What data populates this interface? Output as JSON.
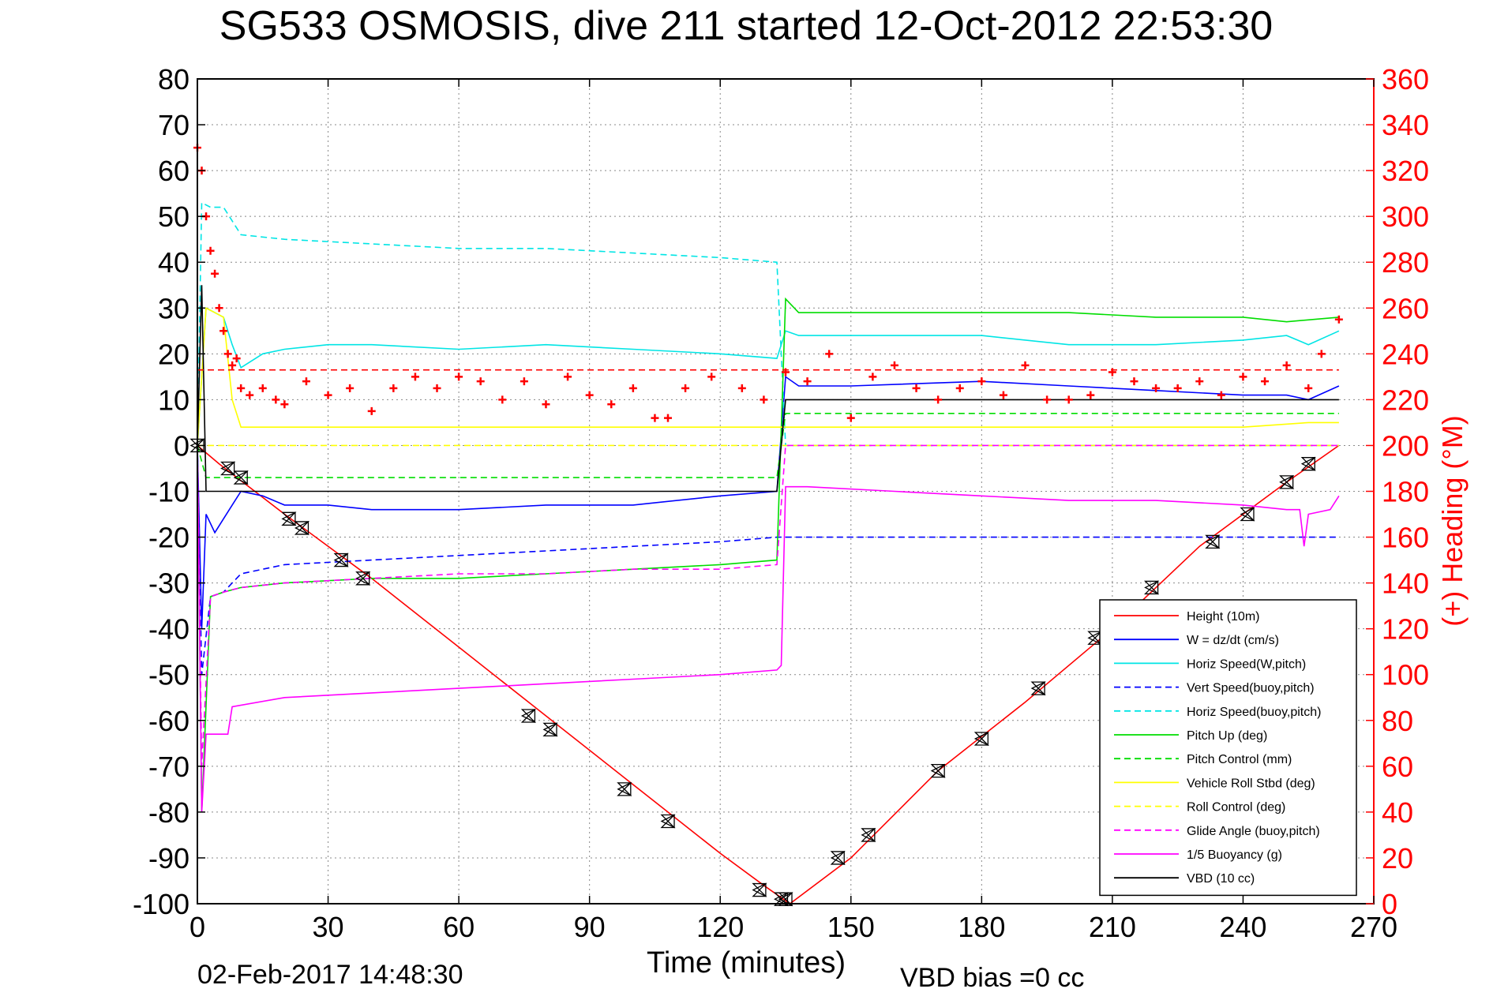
{
  "chart_data": {
    "type": "line",
    "title": "SG533 OSMOSIS, dive 211 started 12-Oct-2012 22:53:30",
    "xlabel": "Time (minutes)",
    "ylabel": "",
    "y2label": "(+) Heading (°M)",
    "footer_left": "02-Feb-2017 14:48:30",
    "footer_right": "VBD bias =0 cc",
    "xlim": [
      0,
      270
    ],
    "ylim": [
      -100,
      80
    ],
    "y2lim": [
      0,
      360
    ],
    "xticks": [
      0,
      30,
      60,
      90,
      120,
      150,
      180,
      210,
      240,
      270
    ],
    "yticks": [
      -100,
      -90,
      -80,
      -70,
      -60,
      -50,
      -40,
      -30,
      -20,
      -10,
      0,
      10,
      20,
      30,
      40,
      50,
      60,
      70,
      80
    ],
    "y2ticks": [
      0,
      20,
      40,
      60,
      80,
      100,
      120,
      140,
      160,
      180,
      200,
      220,
      240,
      260,
      280,
      300,
      320,
      340,
      360
    ],
    "grid": true,
    "legend_position": "bottom-right",
    "colors": {
      "title": "#000000",
      "right_axis": "#ff0000",
      "grid": "#888888"
    },
    "series": [
      {
        "name": "Height (10m)",
        "color": "#ff0000",
        "style": "solid",
        "x": [
          0,
          5,
          20,
          40,
          60,
          80,
          100,
          120,
          130,
          136,
          150,
          170,
          190,
          210,
          230,
          250,
          262
        ],
        "y": [
          0,
          -4,
          -15,
          -29,
          -44,
          -59,
          -74,
          -89,
          -96,
          -100,
          -90,
          -71,
          -56,
          -40,
          -22,
          -8,
          0
        ]
      },
      {
        "name": "W = dz/dt (cm/s)",
        "color": "#0000ff",
        "style": "solid",
        "x": [
          0,
          1,
          2,
          4,
          6,
          8,
          10,
          15,
          20,
          30,
          40,
          60,
          80,
          100,
          120,
          133,
          135,
          138,
          150,
          180,
          200,
          220,
          240,
          250,
          255,
          262
        ],
        "y": [
          0,
          -40,
          -15,
          -19,
          -16,
          -13,
          -10,
          -11,
          -13,
          -13,
          -14,
          -14,
          -13,
          -13,
          -11,
          -10,
          15,
          13,
          13,
          14,
          13,
          12,
          11,
          11,
          10,
          13
        ]
      },
      {
        "name": "Horiz Speed(W,pitch)",
        "color": "#00e5e5",
        "style": "solid",
        "x": [
          0,
          2,
          4,
          6,
          8,
          10,
          15,
          20,
          30,
          40,
          60,
          80,
          100,
          120,
          133,
          135,
          138,
          150,
          180,
          200,
          220,
          240,
          250,
          255,
          262
        ],
        "y": [
          0,
          30,
          29,
          28,
          22,
          17,
          20,
          21,
          22,
          22,
          21,
          22,
          21,
          20,
          19,
          25,
          24,
          24,
          24,
          22,
          22,
          23,
          24,
          22,
          25
        ]
      },
      {
        "name": "Vert Speed(buoy,pitch)",
        "color": "#0000ff",
        "style": "dashed",
        "x": [
          0,
          1,
          3,
          6,
          10,
          20,
          40,
          60,
          80,
          100,
          120,
          133,
          135,
          262
        ],
        "y": [
          0,
          -50,
          -33,
          -32,
          -28,
          -26,
          -25,
          -24,
          -23,
          -22,
          -21,
          -20,
          -20,
          -20
        ]
      },
      {
        "name": "Horiz Speed(buoy,pitch)",
        "color": "#00e5e5",
        "style": "dashed",
        "x": [
          0,
          1,
          3,
          6,
          10,
          20,
          40,
          60,
          80,
          100,
          120,
          133,
          135,
          262
        ],
        "y": [
          0,
          53,
          52,
          52,
          46,
          45,
          44,
          43,
          43,
          42,
          41,
          40,
          0,
          0
        ]
      },
      {
        "name": "Pitch Up (deg)",
        "color": "#00dd00",
        "style": "solid",
        "x": [
          0,
          1,
          3,
          6,
          10,
          20,
          40,
          60,
          80,
          100,
          120,
          133,
          135,
          138,
          150,
          180,
          200,
          220,
          240,
          250,
          262
        ],
        "y": [
          0,
          -80,
          -33,
          -32,
          -31,
          -30,
          -29,
          -29,
          -28,
          -27,
          -26,
          -25,
          32,
          29,
          29,
          29,
          29,
          28,
          28,
          27,
          28
        ]
      },
      {
        "name": "Pitch Control (mm)",
        "color": "#00dd00",
        "style": "dashed",
        "x": [
          0,
          2,
          133,
          135,
          262
        ],
        "y": [
          0,
          -7,
          -7,
          7,
          7
        ]
      },
      {
        "name": "Vehicle Roll Stbd (deg)",
        "color": "#ffff00",
        "style": "solid",
        "x": [
          0,
          2,
          4,
          6,
          8,
          10,
          20,
          40,
          60,
          80,
          100,
          120,
          133,
          135,
          138,
          150,
          180,
          200,
          220,
          240,
          255,
          262
        ],
        "y": [
          0,
          30,
          29,
          28,
          10,
          4,
          4,
          4,
          4,
          4,
          4,
          4,
          4,
          4,
          4,
          4,
          4,
          4,
          4,
          4,
          5,
          5
        ]
      },
      {
        "name": "Roll Control (deg)",
        "color": "#ffff00",
        "style": "dashed",
        "x": [
          0,
          262
        ],
        "y": [
          0,
          0
        ]
      },
      {
        "name": "Glide Angle (buoy,pitch)",
        "color": "#ff00ff",
        "style": "dashed",
        "x": [
          0,
          1,
          3,
          6,
          10,
          20,
          40,
          60,
          80,
          100,
          120,
          133,
          135,
          262
        ],
        "y": [
          0,
          -70,
          -33,
          -32,
          -31,
          -30,
          -29,
          -28,
          -28,
          -27,
          -27,
          -26,
          0,
          0
        ]
      },
      {
        "name": "1/5 Buoyancy (g)",
        "color": "#ff00ff",
        "style": "solid",
        "x": [
          0,
          1,
          2,
          7,
          8,
          20,
          40,
          60,
          80,
          100,
          120,
          133,
          134,
          135,
          140,
          160,
          180,
          200,
          220,
          240,
          250,
          253,
          254,
          255,
          260,
          262
        ],
        "y": [
          0,
          -80,
          -63,
          -63,
          -57,
          -55,
          -54,
          -53,
          -52,
          -51,
          -50,
          -49,
          -48,
          -9,
          -9,
          -10,
          -11,
          -12,
          -12,
          -13,
          -14,
          -14,
          -22,
          -15,
          -14,
          -11
        ]
      },
      {
        "name": "VBD (10 cc)",
        "color": "#000000",
        "style": "solid",
        "x": [
          0,
          1,
          2,
          133,
          135,
          136,
          140,
          262
        ],
        "y": [
          0,
          35,
          -10,
          -10,
          10,
          10,
          10,
          10
        ]
      },
      {
        "name": "(+) Heading",
        "color": "#ff0000",
        "style": "markers",
        "axis": "right",
        "x": [
          0,
          1,
          2,
          3,
          4,
          5,
          6,
          7,
          8,
          9,
          10,
          12,
          15,
          18,
          20,
          25,
          30,
          35,
          40,
          45,
          50,
          55,
          60,
          65,
          70,
          75,
          80,
          85,
          90,
          95,
          100,
          105,
          108,
          112,
          118,
          125,
          130,
          135,
          140,
          145,
          150,
          155,
          160,
          165,
          170,
          175,
          180,
          185,
          190,
          195,
          200,
          205,
          210,
          215,
          220,
          225,
          230,
          235,
          240,
          245,
          250,
          255,
          258,
          262
        ],
        "y": [
          330,
          320,
          300,
          285,
          275,
          260,
          250,
          240,
          235,
          238,
          225,
          222,
          225,
          220,
          218,
          228,
          222,
          225,
          215,
          225,
          230,
          225,
          230,
          228,
          220,
          228,
          218,
          230,
          222,
          218,
          225,
          212,
          212,
          225,
          230,
          225,
          220,
          232,
          228,
          240,
          212,
          230,
          235,
          225,
          220,
          225,
          228,
          222,
          235,
          220,
          220,
          222,
          232,
          228,
          225,
          225,
          228,
          222,
          230,
          228,
          235,
          225,
          240,
          255
        ]
      },
      {
        "name": "Heading (dashed)",
        "color": "#ff0000",
        "style": "dashed",
        "axis": "right",
        "x": [
          0,
          262
        ],
        "y": [
          233,
          233
        ]
      }
    ],
    "depth_markers": {
      "x": [
        0,
        7,
        10,
        21,
        24,
        33,
        38,
        76,
        81,
        98,
        108,
        129,
        134,
        135,
        147,
        154,
        170,
        180,
        193,
        206,
        219,
        233,
        241,
        250,
        255
      ],
      "y": [
        0,
        -5,
        -7,
        -16,
        -18,
        -25,
        -29,
        -59,
        -62,
        -75,
        -82,
        -97,
        -99,
        -99,
        -90,
        -85,
        -71,
        -64,
        -53,
        -42,
        -31,
        -21,
        -15,
        -8,
        -4
      ]
    }
  }
}
